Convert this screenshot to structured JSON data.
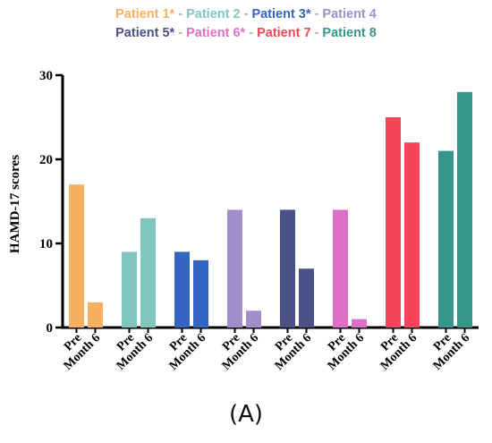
{
  "chart_data": {
    "type": "bar",
    "ylabel": "HAMD-17 scores",
    "xlabel": "",
    "ylim": [
      0,
      30
    ],
    "yticks": [
      0,
      10,
      20,
      30
    ],
    "grid": false,
    "legend_position": "top-center",
    "tick_labels": [
      "Pre",
      "Month 6"
    ],
    "series": [
      {
        "name": "Patient 1*",
        "color": "#F7B060",
        "values": [
          17,
          3
        ]
      },
      {
        "name": "Patient 2",
        "color": "#80C5BE",
        "values": [
          9,
          13
        ]
      },
      {
        "name": "Patient 3*",
        "color": "#3465C0",
        "values": [
          9,
          8
        ]
      },
      {
        "name": "Patient 4",
        "color": "#A08FCB",
        "values": [
          14,
          2
        ]
      },
      {
        "name": "Patient 5*",
        "color": "#4A5186",
        "values": [
          14,
          7
        ]
      },
      {
        "name": "Patient 6*",
        "color": "#DB70C6",
        "values": [
          14,
          1
        ]
      },
      {
        "name": "Patient 7",
        "color": "#F5455A",
        "values": [
          25,
          22
        ]
      },
      {
        "name": "Patient 8",
        "color": "#35978B",
        "values": [
          21,
          28
        ]
      }
    ]
  },
  "legend": {
    "separator": "-"
  },
  "panel_label": "(A)"
}
